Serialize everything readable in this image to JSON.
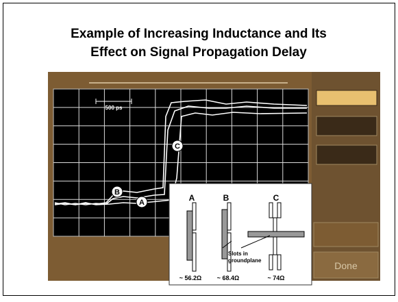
{
  "title": [
    "Example of Increasing Inductance and Its",
    "Effect on Signal Propagation Delay"
  ],
  "scope": {
    "scale_label": "500 ps",
    "markers": [
      "A",
      "B",
      "C"
    ],
    "button": "Done"
  },
  "inset": {
    "columns": [
      {
        "label": "A",
        "impedance": "~ 56.2Ω"
      },
      {
        "label": "B",
        "impedance": "~ 68.4Ω"
      },
      {
        "label": "C",
        "impedance": "~ 74Ω"
      }
    ],
    "annotation": [
      "Slots in",
      "groundplane"
    ]
  }
}
